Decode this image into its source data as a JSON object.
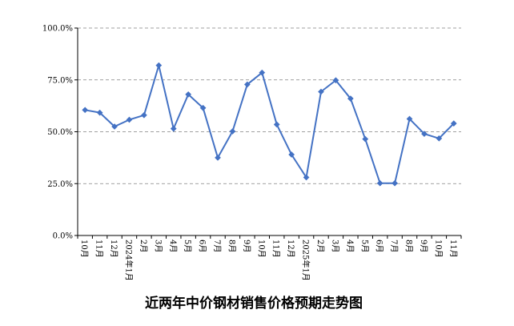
{
  "chart_data": {
    "type": "line",
    "title": "近两年中价钢材销售价格预期走势图",
    "xlabel": "",
    "ylabel": "",
    "categories": [
      "10月",
      "11月",
      "12月",
      "2024年1月",
      "2月",
      "3月",
      "4月",
      "5月",
      "6月",
      "7月",
      "8月",
      "9月",
      "10月",
      "11月",
      "12月",
      "2025年1月",
      "2月",
      "3月",
      "4月",
      "5月",
      "6月",
      "7月",
      "8月",
      "9月",
      "10月",
      "11月"
    ],
    "series": [
      {
        "values": [
          60.5,
          59.2,
          52.5,
          55.8,
          58.0,
          82.0,
          51.5,
          68.0,
          61.5,
          37.5,
          50.2,
          72.8,
          78.5,
          53.5,
          39.0,
          28.0,
          69.3,
          74.8,
          66.0,
          46.5,
          25.2,
          25.2,
          56.2,
          49.0,
          46.8,
          54.0
        ]
      }
    ],
    "yticks": [
      "0.0%",
      "25.0%",
      "50.0%",
      "75.0%",
      "100.0%"
    ],
    "ylim": [
      0,
      100
    ],
    "grid": true,
    "legend": "none",
    "colors": {
      "line": "#4472C4",
      "grid": "#808080",
      "axis": "#000000"
    }
  }
}
